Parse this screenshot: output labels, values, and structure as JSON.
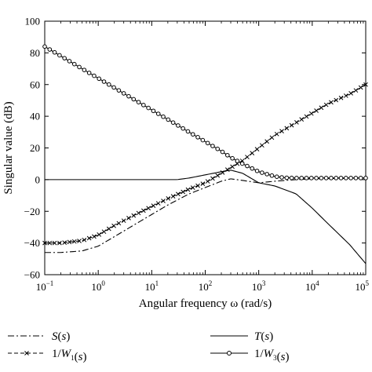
{
  "chart_data": {
    "type": "line",
    "xlabel": "Angular frequency ω (rad/s)",
    "ylabel": "Singular value (dB)",
    "x_scale": "log",
    "xlim": [
      0.1,
      100000
    ],
    "ylim": [
      -60,
      100
    ],
    "yticks": [
      -60,
      -40,
      -20,
      0,
      20,
      40,
      60,
      80,
      100
    ],
    "xtick_labels": [
      {
        "base": "10",
        "exp": "−1"
      },
      {
        "base": "10",
        "exp": "0"
      },
      {
        "base": "10",
        "exp": "1"
      },
      {
        "base": "10",
        "exp": "2"
      },
      {
        "base": "10",
        "exp": "3"
      },
      {
        "base": "10",
        "exp": "4"
      },
      {
        "base": "10",
        "exp": "5"
      }
    ],
    "grid": false,
    "legend_position": "bottom",
    "series": [
      {
        "name": "S(s)",
        "style": "dash-dot",
        "color": "#000000",
        "x": [
          0.1,
          0.2,
          0.5,
          1,
          2,
          5,
          10,
          20,
          50,
          100,
          200,
          300,
          500,
          1000,
          2000,
          5000,
          10000,
          100000
        ],
        "y": [
          -46,
          -46,
          -45,
          -42,
          -36,
          -28,
          -22,
          -16,
          -9,
          -5,
          -1,
          0.5,
          -0.5,
          -2,
          -1,
          0,
          0.5,
          1
        ]
      },
      {
        "name": "1/W1(s)",
        "style": "dashed-x",
        "color": "#000000",
        "x": [
          0.1,
          0.2,
          0.5,
          1,
          2,
          5,
          10,
          20,
          50,
          100,
          200,
          500,
          1000,
          2000,
          5000,
          10000,
          20000,
          50000,
          100000
        ],
        "y": [
          -40,
          -40,
          -38.5,
          -35,
          -29,
          -22,
          -17,
          -12,
          -6,
          -2,
          4,
          12,
          20,
          28,
          36,
          42,
          48,
          54,
          60
        ]
      },
      {
        "name": "T(s)",
        "style": "solid",
        "color": "#000000",
        "x": [
          0.1,
          1,
          10,
          30,
          50,
          100,
          200,
          300,
          500,
          1000,
          2000,
          5000,
          10000,
          20000,
          50000,
          100000
        ],
        "y": [
          0,
          0,
          0,
          0,
          1,
          3,
          5,
          6,
          4,
          -2,
          -4,
          -9,
          -18,
          -28,
          -41,
          -53
        ]
      },
      {
        "name": "1/W3(s)",
        "style": "solid-circle",
        "color": "#000000",
        "x": [
          0.1,
          0.2,
          0.5,
          1,
          2,
          5,
          10,
          20,
          50,
          100,
          200,
          300,
          500,
          1000,
          2000,
          3000,
          5000,
          10000,
          100000
        ],
        "y": [
          84,
          78,
          70,
          64,
          58,
          50,
          44,
          38,
          30,
          24,
          18,
          14,
          10,
          5,
          2,
          1.2,
          1,
          1,
          1
        ]
      }
    ],
    "legend": [
      {
        "label_main": "S",
        "label_sub": "",
        "label_arg": "(s)",
        "style": "dash-dot"
      },
      {
        "label_main": "T",
        "label_sub": "",
        "label_arg": "(s)",
        "style": "solid"
      },
      {
        "label_main": "1/W",
        "label_sub": "1",
        "label_arg": "(s)",
        "style": "dashed-x"
      },
      {
        "label_main": "1/W",
        "label_sub": "3",
        "label_arg": "(s)",
        "style": "solid-circle"
      }
    ]
  }
}
